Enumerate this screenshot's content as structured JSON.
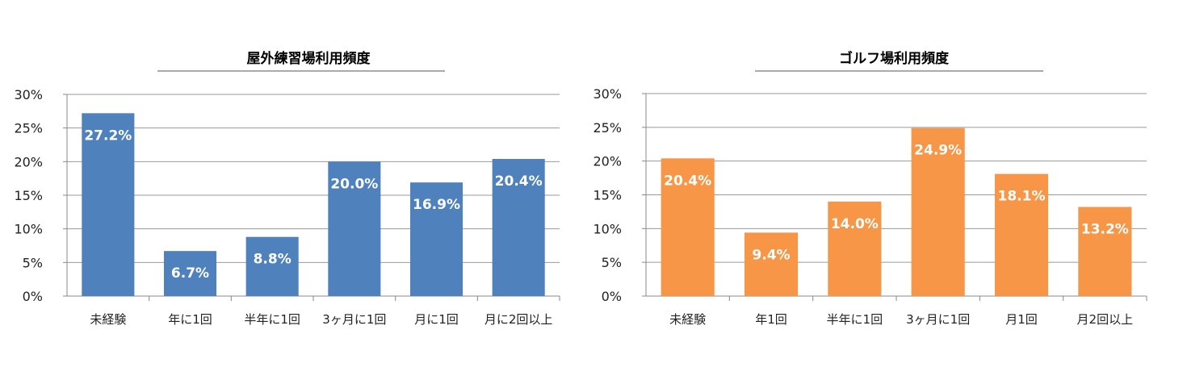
{
  "chart_data": [
    {
      "type": "bar",
      "title": "屋外練習場利用頻度",
      "xlabel": "",
      "ylabel": "",
      "categories": [
        "未経験",
        "年に1回",
        "半年に1回",
        "3ヶ月に1回",
        "月に1回",
        "月に2回以上"
      ],
      "values": [
        27.2,
        6.7,
        8.8,
        20.0,
        16.9,
        20.4
      ],
      "data_labels": [
        "27.2%",
        "6.7%",
        "8.8%",
        "20.0%",
        "16.9%",
        "20.4%"
      ],
      "yticks": [
        "0%",
        "5%",
        "10%",
        "15%",
        "20%",
        "25%",
        "30%"
      ],
      "ylim": [
        0,
        30
      ],
      "color": "#4F81BD",
      "grid": true,
      "legend": "none"
    },
    {
      "type": "bar",
      "title": "ゴルフ場利用頻度",
      "xlabel": "",
      "ylabel": "",
      "categories": [
        "未経験",
        "年1回",
        "半年に1回",
        "3ヶ月に1回",
        "月1回",
        "月2回以上"
      ],
      "values": [
        20.4,
        9.4,
        14.0,
        24.9,
        18.1,
        13.2
      ],
      "data_labels": [
        "20.4%",
        "9.4%",
        "14.0%",
        "24.9%",
        "18.1%",
        "13.2%"
      ],
      "yticks": [
        "0%",
        "5%",
        "10%",
        "15%",
        "20%",
        "25%",
        "30%"
      ],
      "ylim": [
        0,
        30
      ],
      "color": "#F79646",
      "grid": true,
      "legend": "none"
    }
  ]
}
